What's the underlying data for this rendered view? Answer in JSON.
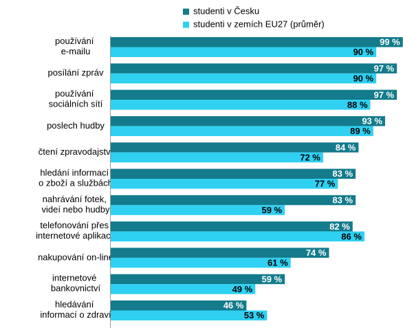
{
  "chart_data": {
    "type": "bar",
    "orientation": "horizontal",
    "categories": [
      "používání\ne-mailu",
      "posílání zpráv",
      "používání\nsociálních sítí",
      "poslech hudby",
      "čtení zpravodajství",
      "hledání informací\no zboží a službách",
      "nahrávání fotek,\nvideí nebo hudby",
      "telefonování přes\ninternetové aplikace",
      "nakupování on-line",
      "internetové\nbankovnictví",
      "hledávání\ninformací o zdraví"
    ],
    "series": [
      {
        "name": "studenti v Česku",
        "color": "#137b8b",
        "values": [
          99,
          97,
          97,
          93,
          84,
          83,
          83,
          82,
          74,
          59,
          46
        ],
        "value_labels": [
          "99 %",
          "97 %",
          "97 %",
          "93 %",
          "84 %",
          "83 %",
          "83 %",
          "82 %",
          "74 %",
          "59 %",
          "46 %"
        ]
      },
      {
        "name": "studenti v zemích EU27 (průměr)",
        "color": "#2fd0f2",
        "values": [
          90,
          90,
          88,
          89,
          72,
          77,
          59,
          86,
          61,
          49,
          53
        ],
        "value_labels": [
          "90 %",
          "90 %",
          "88 %",
          "89 %",
          "72 %",
          "77 %",
          "59 %",
          "86 %",
          "61 %",
          "49 %",
          "53 %"
        ]
      }
    ],
    "xlim": [
      0,
      100
    ],
    "legend": "top"
  }
}
